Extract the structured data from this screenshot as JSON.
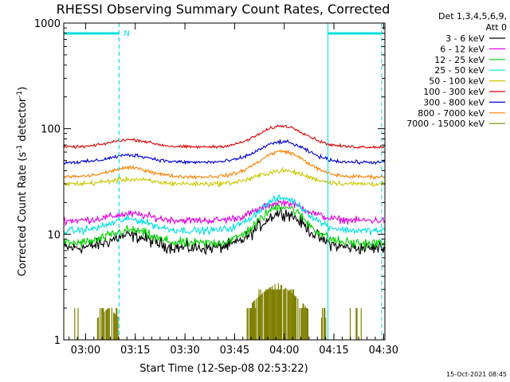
{
  "chart_data": {
    "type": "line",
    "title": "RHESSI Observing Summary Count Rates, Corrected",
    "xlabel": "Start Time (12-Sep-08 02:53:22)",
    "ylabel": "Corrected Count Rate (s",
    "ylabel_sup1": "-1",
    "ylabel_mid": " detector",
    "ylabel_sup2": "-1",
    "ylabel_end": ")",
    "y_scale": "log",
    "ylim": [
      1,
      1000
    ],
    "xlim_minutes": [
      0,
      97
    ],
    "x_ticks": [
      {
        "label": "03:00",
        "min": 6.6
      },
      {
        "label": "03:15",
        "min": 21.6
      },
      {
        "label": "03:30",
        "min": 36.6
      },
      {
        "label": "03:45",
        "min": 51.6
      },
      {
        "label": "04:00",
        "min": 66.6
      },
      {
        "label": "04:15",
        "min": 81.6
      },
      {
        "label": "04:30",
        "min": 96.6
      }
    ],
    "y_ticks": [
      {
        "label": "1",
        "value": 1
      },
      {
        "label": "10",
        "value": 10
      },
      {
        "label": "100",
        "value": 100
      },
      {
        "label": "1000",
        "value": 1000
      }
    ],
    "legend_header": [
      "Det 1,3,4,5,6,9,",
      "Att 0"
    ],
    "series": [
      {
        "name": "3 - 6 keV",
        "color": "#000000",
        "base": 7.4,
        "peak": 16,
        "noise": 0.09
      },
      {
        "name": "6 - 12 keV",
        "color": "#e000e0",
        "base": 13.5,
        "peak": 20,
        "noise": 0.05
      },
      {
        "name": "12 - 25 keV",
        "color": "#00d000",
        "base": 8.2,
        "peak": 18.5,
        "noise": 0.07
      },
      {
        "name": "25 - 50 keV",
        "color": "#00e0e0",
        "base": 10.8,
        "peak": 22,
        "noise": 0.05
      },
      {
        "name": "50 - 100 keV",
        "color": "#c8c800",
        "base": 30,
        "peak": 40,
        "noise": 0.035
      },
      {
        "name": "100 - 300 keV",
        "color": "#e00000",
        "base": 67,
        "peak": 106,
        "noise": 0.02
      },
      {
        "name": "300 - 800 keV",
        "color": "#0000e0",
        "base": 48,
        "peak": 75,
        "noise": 0.025
      },
      {
        "name": "800 - 7000 keV",
        "color": "#ff8000",
        "base": 35,
        "peak": 61,
        "noise": 0.025
      },
      {
        "name": "7000 - 15000 keV",
        "color": "#808000",
        "base": 0,
        "peak": 3.5,
        "noise": 0
      }
    ],
    "night_markers": [
      {
        "label": "N",
        "start_min": 0,
        "end_min": 16.7,
        "line_min": 16.7,
        "line_style": "dashed"
      },
      {
        "label": "",
        "start_min": 79.8,
        "end_min": 96.0,
        "line_min": 79.8,
        "line_style": "solid"
      }
    ],
    "dashed_lines_min": [
      0,
      16.7,
      96.0
    ],
    "timestamp": "15-Oct-2021 08:45"
  }
}
